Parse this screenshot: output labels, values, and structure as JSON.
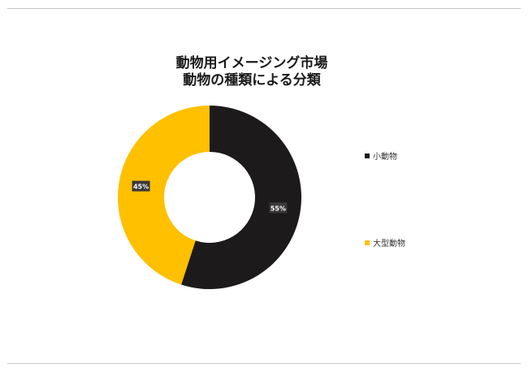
{
  "chart_data": {
    "type": "donut",
    "title_lines": [
      "動物用イメージング市場",
      "動物の種類による分類"
    ],
    "series": [
      {
        "name": "小動物",
        "value": 55,
        "label": "55%",
        "color": "#1c1a1a"
      },
      {
        "name": "大型動物",
        "value": 45,
        "label": "45%",
        "color": "#ffc000"
      }
    ],
    "legend_position": "right"
  }
}
